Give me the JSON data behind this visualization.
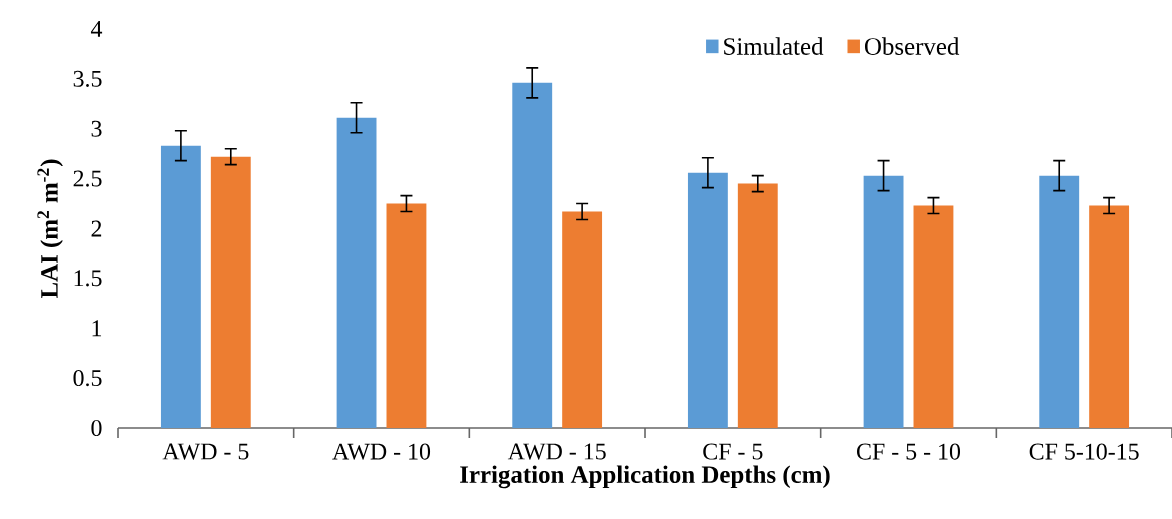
{
  "chart_data": {
    "type": "bar",
    "xlabel": "Irrigation Application Depths (cm)",
    "ylabel": "LAI (m$^{2}$ m$^{-2}$)",
    "categories": [
      "AWD - 5",
      "AWD - 10",
      "AWD - 15",
      "CF - 5",
      "CF - 5 - 10",
      "CF 5-10-15"
    ],
    "series": [
      {
        "name": "Simulated",
        "color": "#5b9bd5",
        "values": [
          2.83,
          3.11,
          3.46,
          2.56,
          2.53,
          2.53
        ],
        "errors": [
          0.15,
          0.15,
          0.15,
          0.15,
          0.15,
          0.15
        ]
      },
      {
        "name": "Observed",
        "color": "#ed7d31",
        "values": [
          2.72,
          2.25,
          2.17,
          2.45,
          2.23,
          2.23
        ],
        "errors": [
          0.08,
          0.08,
          0.08,
          0.08,
          0.08,
          0.08
        ]
      }
    ],
    "ylim": [
      0,
      4
    ],
    "yticks": [
      0,
      0.5,
      1,
      1.5,
      2,
      2.5,
      3,
      3.5,
      4
    ],
    "grid": false,
    "legend": "top"
  }
}
